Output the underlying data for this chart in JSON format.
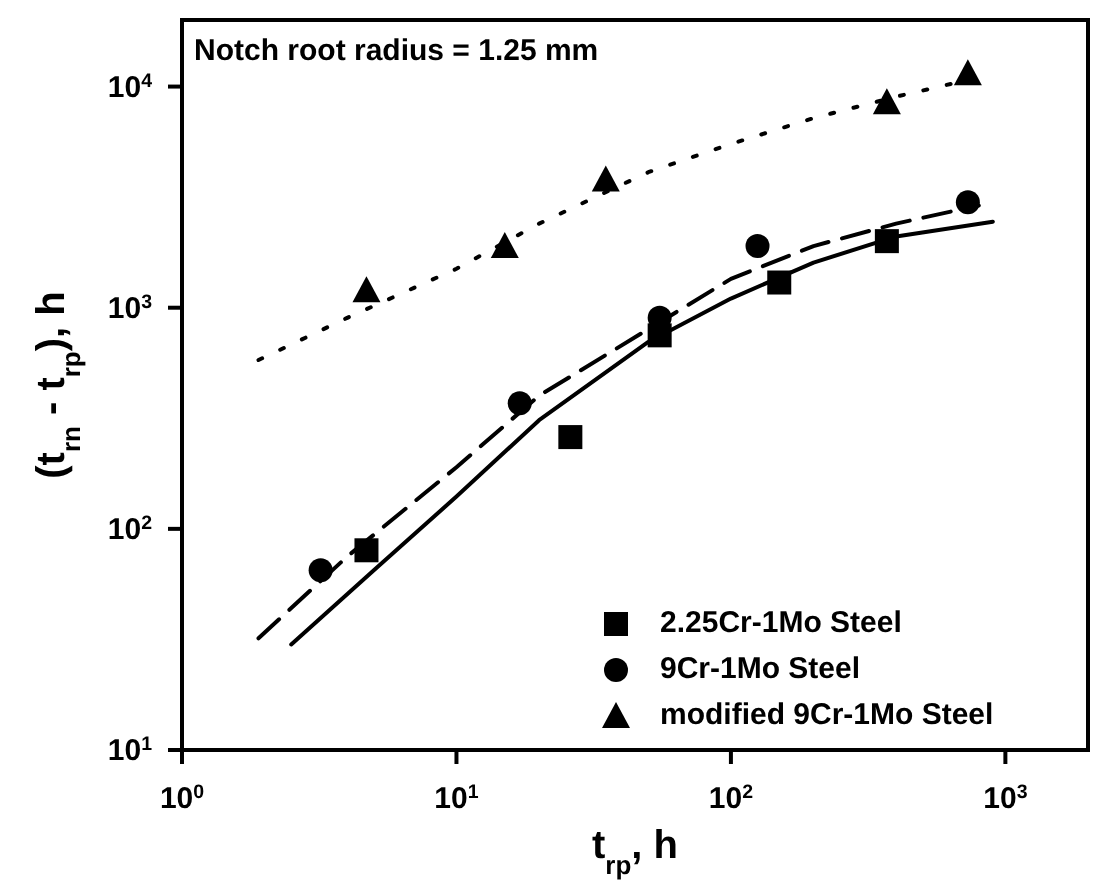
{
  "chart_data": {
    "type": "scatter",
    "xlabel": "t$_{rp}$, h",
    "ylabel": "(t$_{rn}$ - t$_{rp}$), h",
    "annotations": [
      "Notch root radius = 1.25 mm"
    ],
    "log": "xy",
    "xlim": [
      1,
      2000
    ],
    "ylim": [
      10,
      20000
    ],
    "xticks": [
      {
        "value": 1,
        "label": "10$^{0}$"
      },
      {
        "value": 10,
        "label": "10$^{1}$"
      },
      {
        "value": 100,
        "label": "10$^{2}$"
      },
      {
        "value": 1000,
        "label": "10$^{3}$"
      }
    ],
    "yticks": [
      {
        "value": 10,
        "label": "10$^{1}$"
      },
      {
        "value": 100,
        "label": "10$^{2}$"
      },
      {
        "value": 1000,
        "label": "10$^{3}$"
      },
      {
        "value": 10000,
        "label": "10$^{4}$"
      }
    ],
    "legend": "bottom right",
    "grid": false,
    "series": [
      {
        "name": "2.25Cr-1Mo Steel",
        "color": "#000000",
        "marker": "square",
        "x": [
          4.7,
          26,
          55,
          150,
          370
        ],
        "values": [
          80,
          260,
          750,
          1300,
          2000
        ]
      },
      {
        "name": "9Cr-1Mo Steel",
        "color": "#000000",
        "marker": "circle",
        "x": [
          3.2,
          17,
          55,
          125,
          730
        ],
        "values": [
          65,
          370,
          900,
          1900,
          3000
        ]
      },
      {
        "name": "modified 9Cr-1Mo Steel",
        "color": "#000000",
        "marker": "triangle",
        "x": [
          4.7,
          15,
          35,
          370,
          730
        ],
        "values": [
          1200,
          1900,
          3800,
          8500,
          11500
        ]
      },
      {
        "type": "line",
        "color": "#000000",
        "marker": "none",
        "line_style": "solid",
        "x": [
          2.5,
          5,
          10,
          20,
          50,
          100,
          200,
          400,
          900
        ],
        "values": [
          30,
          65,
          140,
          310,
          700,
          1100,
          1600,
          2100,
          2450
        ]
      },
      {
        "type": "line",
        "color": "#000000",
        "marker": "none",
        "line_style": "dashed",
        "x": [
          1.9,
          4,
          10,
          20,
          50,
          100,
          200,
          400,
          800
        ],
        "values": [
          32,
          75,
          190,
          400,
          800,
          1350,
          1900,
          2400,
          2900
        ]
      },
      {
        "type": "line",
        "color": "#000000",
        "marker": "none",
        "line_style": "dotted",
        "x": [
          1.9,
          4,
          10,
          20,
          50,
          100,
          200,
          400,
          800
        ],
        "values": [
          580,
          900,
          1500,
          2400,
          4100,
          5500,
          7200,
          9000,
          11000
        ]
      }
    ]
  }
}
